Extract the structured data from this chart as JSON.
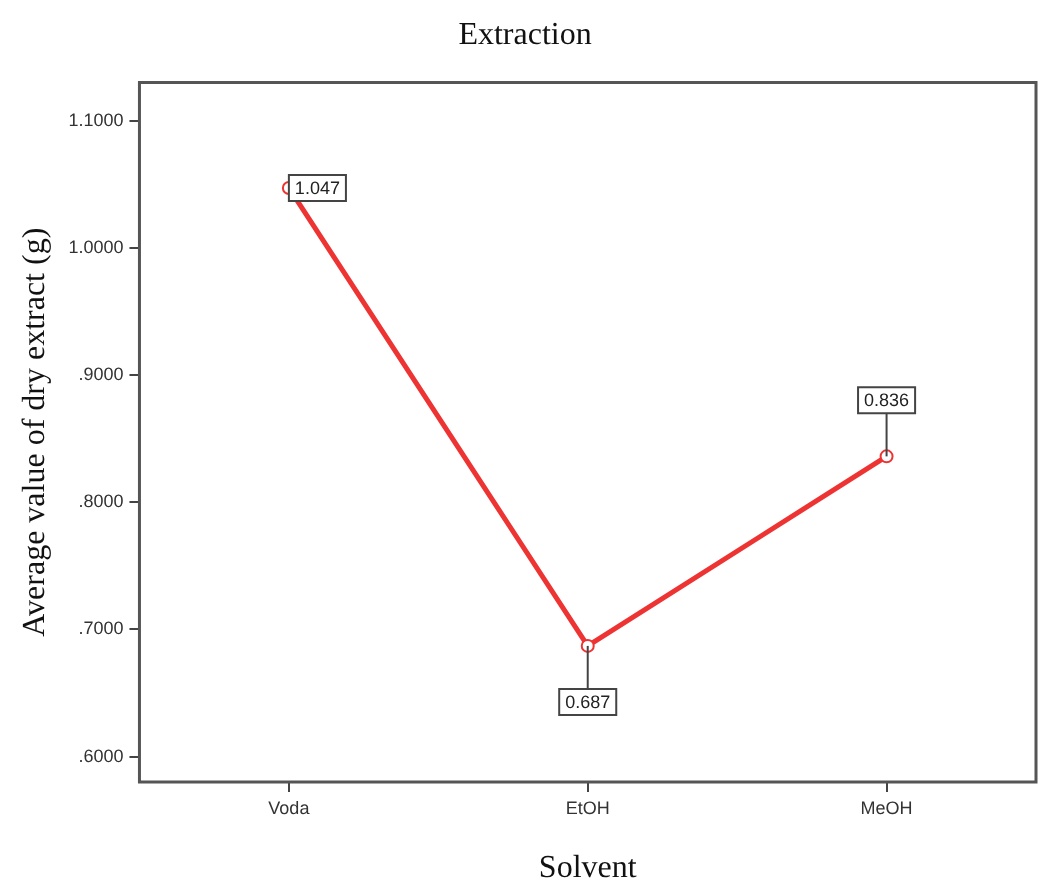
{
  "chart_data": {
    "type": "line",
    "title": "Extraction",
    "xlabel": "Solvent",
    "ylabel": "Average value of dry extract (g)",
    "categories": [
      "Voda",
      "EtOH",
      "MeOH"
    ],
    "series": [
      {
        "color": "#ee3333",
        "values": [
          1.047,
          0.687,
          0.836
        ]
      }
    ],
    "ylim": [
      0.58,
      1.13
    ],
    "yticks": [
      {
        "value": 0.6,
        "label": ".6000"
      },
      {
        "value": 0.7,
        "label": ".7000"
      },
      {
        "value": 0.8,
        "label": ".8000"
      },
      {
        "value": 0.9,
        "label": ".9000"
      },
      {
        "value": 1.0,
        "label": "1.0000"
      },
      {
        "value": 1.1,
        "label": "1.1000"
      }
    ],
    "marker": "circle",
    "line_style": "solid",
    "data_labels": true,
    "legend": false,
    "grid": false
  }
}
